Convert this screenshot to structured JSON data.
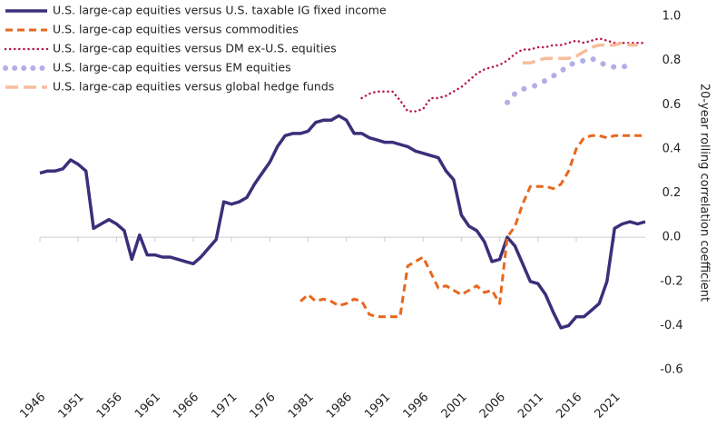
{
  "chart_data": {
    "type": "line",
    "y_axis_label": "20-year rolling correlation coefficient",
    "x": [
      1946,
      1947,
      1948,
      1949,
      1950,
      1951,
      1952,
      1953,
      1954,
      1955,
      1956,
      1957,
      1958,
      1959,
      1960,
      1961,
      1962,
      1963,
      1964,
      1965,
      1966,
      1967,
      1968,
      1969,
      1970,
      1971,
      1972,
      1973,
      1974,
      1975,
      1976,
      1977,
      1978,
      1979,
      1980,
      1981,
      1982,
      1983,
      1984,
      1985,
      1986,
      1987,
      1988,
      1989,
      1990,
      1991,
      1992,
      1993,
      1994,
      1995,
      1996,
      1997,
      1998,
      1999,
      2000,
      2001,
      2002,
      2003,
      2004,
      2005,
      2006,
      2007,
      2008,
      2009,
      2010,
      2011,
      2012,
      2013,
      2014,
      2015,
      2016,
      2017,
      2018,
      2019,
      2020,
      2021,
      2022,
      2023,
      2024,
      2025
    ],
    "xlim": [
      1946,
      2025
    ],
    "xticks": [
      1946,
      1951,
      1956,
      1961,
      1966,
      1971,
      1976,
      1981,
      1986,
      1991,
      1996,
      2001,
      2006,
      2011,
      2016,
      2021
    ],
    "ylim": [
      -0.6,
      1.0
    ],
    "yticks": [
      {
        "value": 1.0,
        "label": "1.0"
      },
      0.8,
      0.6,
      0.4,
      0.2,
      {
        "value": 0.0,
        "label": "0.0"
      },
      -0.2,
      -0.4,
      -0.6
    ],
    "y_axis_side": "right",
    "legend": "top-left",
    "series": [
      {
        "name": "U.S. large-cap equities versus U.S. taxable IG fixed income",
        "color": "#3b2f7a",
        "style": "solid",
        "values": [
          0.29,
          0.3,
          0.3,
          0.31,
          0.35,
          0.33,
          0.3,
          0.04,
          0.06,
          0.08,
          0.06,
          0.03,
          -0.1,
          0.01,
          -0.08,
          -0.08,
          -0.09,
          -0.09,
          -0.1,
          -0.11,
          -0.12,
          -0.09,
          -0.05,
          -0.01,
          0.16,
          0.15,
          0.16,
          0.18,
          0.24,
          0.29,
          0.34,
          0.41,
          0.46,
          0.47,
          0.47,
          0.48,
          0.52,
          0.53,
          0.53,
          0.55,
          0.53,
          0.47,
          0.47,
          0.45,
          0.44,
          0.43,
          0.43,
          0.42,
          0.41,
          0.39,
          0.38,
          0.37,
          0.36,
          0.3,
          0.26,
          0.1,
          0.05,
          0.03,
          -0.02,
          -0.11,
          -0.1,
          0.0,
          -0.04,
          -0.12,
          -0.2,
          -0.21,
          -0.26,
          -0.34,
          -0.41,
          -0.4,
          -0.36,
          -0.36,
          -0.33,
          -0.3,
          -0.2,
          0.04,
          0.06,
          0.07,
          0.06,
          0.07
        ]
      },
      {
        "name": "U.S. large-cap equities versus commodities",
        "color": "#e8671c",
        "style": "dashed",
        "values": [
          null,
          null,
          null,
          null,
          null,
          null,
          null,
          null,
          null,
          null,
          null,
          null,
          null,
          null,
          null,
          null,
          null,
          null,
          null,
          null,
          null,
          null,
          null,
          null,
          null,
          null,
          null,
          null,
          null,
          null,
          null,
          null,
          null,
          null,
          -0.29,
          -0.26,
          -0.29,
          -0.28,
          -0.29,
          -0.31,
          -0.3,
          -0.28,
          -0.29,
          -0.35,
          -0.36,
          -0.36,
          -0.36,
          -0.36,
          -0.13,
          -0.11,
          -0.09,
          -0.16,
          -0.23,
          -0.22,
          -0.24,
          -0.26,
          -0.24,
          -0.22,
          -0.25,
          -0.24,
          -0.3,
          0.0,
          0.05,
          0.15,
          0.23,
          0.23,
          0.23,
          0.22,
          0.24,
          0.3,
          0.4,
          0.45,
          0.46,
          0.46,
          0.45,
          0.46,
          0.46,
          0.46,
          0.46,
          0.46
        ]
      },
      {
        "name": "U.S. large-cap equities versus DM ex-U.S. equities",
        "color": "#b5174f",
        "style": "dotted",
        "values": [
          null,
          null,
          null,
          null,
          null,
          null,
          null,
          null,
          null,
          null,
          null,
          null,
          null,
          null,
          null,
          null,
          null,
          null,
          null,
          null,
          null,
          null,
          null,
          null,
          null,
          null,
          null,
          null,
          null,
          null,
          null,
          null,
          null,
          null,
          null,
          null,
          null,
          null,
          null,
          null,
          null,
          null,
          0.63,
          0.65,
          0.66,
          0.66,
          0.66,
          0.62,
          0.57,
          0.57,
          0.58,
          0.63,
          0.63,
          0.64,
          0.66,
          0.68,
          0.71,
          0.74,
          0.76,
          0.77,
          0.78,
          0.8,
          0.83,
          0.85,
          0.85,
          0.86,
          0.86,
          0.87,
          0.87,
          0.88,
          0.89,
          0.88,
          0.89,
          0.9,
          0.89,
          0.88,
          0.88,
          0.88,
          0.88,
          0.88
        ]
      },
      {
        "name": "U.S. large-cap equities versus EM equities",
        "color": "#b3aee8",
        "style": "dots",
        "values": [
          null,
          null,
          null,
          null,
          null,
          null,
          null,
          null,
          null,
          null,
          null,
          null,
          null,
          null,
          null,
          null,
          null,
          null,
          null,
          null,
          null,
          null,
          null,
          null,
          null,
          null,
          null,
          null,
          null,
          null,
          null,
          null,
          null,
          null,
          null,
          null,
          null,
          null,
          null,
          null,
          null,
          null,
          null,
          null,
          null,
          null,
          null,
          null,
          null,
          null,
          null,
          null,
          null,
          null,
          null,
          null,
          null,
          null,
          null,
          null,
          null,
          0.61,
          0.65,
          0.67,
          0.68,
          0.69,
          0.71,
          0.73,
          0.75,
          0.78,
          0.79,
          0.8,
          0.81,
          0.79,
          0.78,
          0.77,
          0.77,
          0.78,
          null,
          null
        ]
      },
      {
        "name": "U.S. large-cap equities versus global hedge funds",
        "color": "#f7bd9c",
        "style": "longdash",
        "values": [
          null,
          null,
          null,
          null,
          null,
          null,
          null,
          null,
          null,
          null,
          null,
          null,
          null,
          null,
          null,
          null,
          null,
          null,
          null,
          null,
          null,
          null,
          null,
          null,
          null,
          null,
          null,
          null,
          null,
          null,
          null,
          null,
          null,
          null,
          null,
          null,
          null,
          null,
          null,
          null,
          null,
          null,
          null,
          null,
          null,
          null,
          null,
          null,
          null,
          null,
          null,
          null,
          null,
          null,
          null,
          null,
          null,
          null,
          null,
          null,
          null,
          null,
          null,
          0.79,
          0.79,
          0.8,
          0.81,
          0.81,
          0.81,
          0.81,
          0.82,
          0.84,
          0.86,
          0.87,
          0.87,
          0.87,
          0.88,
          0.87,
          0.87,
          null
        ]
      }
    ]
  }
}
